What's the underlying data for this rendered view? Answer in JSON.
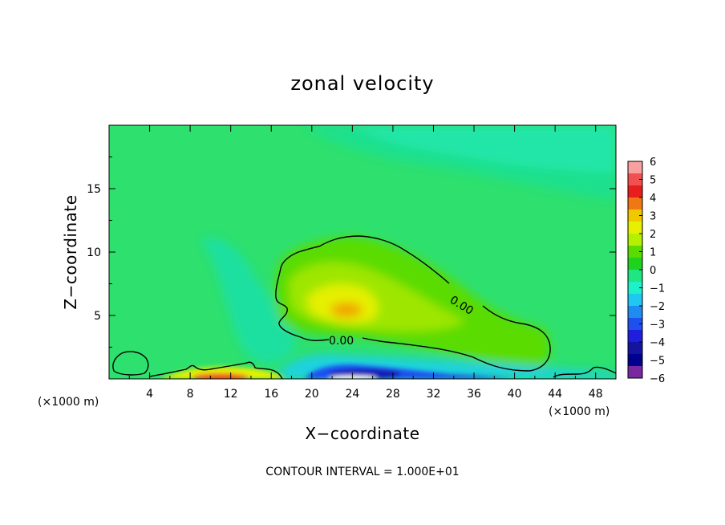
{
  "chart_data": {
    "type": "heatmap",
    "title": "zonal velocity",
    "xlabel": "X−coordinate",
    "ylabel": "Z−coordinate",
    "x_unit": "(×1000 m)",
    "y_unit": "(×1000 m)",
    "xlim": [
      0,
      50
    ],
    "ylim": [
      0,
      20
    ],
    "x_ticks": [
      "4",
      "8",
      "12",
      "16",
      "20",
      "24",
      "28",
      "32",
      "36",
      "40",
      "44",
      "48"
    ],
    "y_ticks": [
      "5",
      "10",
      "15"
    ],
    "colorbar": {
      "labels": [
        "6",
        "5",
        "4",
        "3",
        "2",
        "1",
        "0",
        "−1",
        "−2",
        "−3",
        "−4",
        "−5",
        "−6"
      ],
      "colors": [
        "#f8a0a0",
        "#f05050",
        "#e81e1e",
        "#f07814",
        "#f0c800",
        "#e6f000",
        "#b4f000",
        "#5adc00",
        "#1ed21e",
        "#1ee682",
        "#1ef0c8",
        "#1ec8f0",
        "#1e8cf0",
        "#1e50f0",
        "#1e1edc",
        "#1414a0",
        "#000090",
        "#7828a0"
      ]
    },
    "contours": [
      {
        "label": "0.00",
        "value": 0.0
      },
      {
        "label": "0.00",
        "value": 0.0
      }
    ],
    "annotation": "CONTOUR INTERVAL = 1.000E+01"
  }
}
